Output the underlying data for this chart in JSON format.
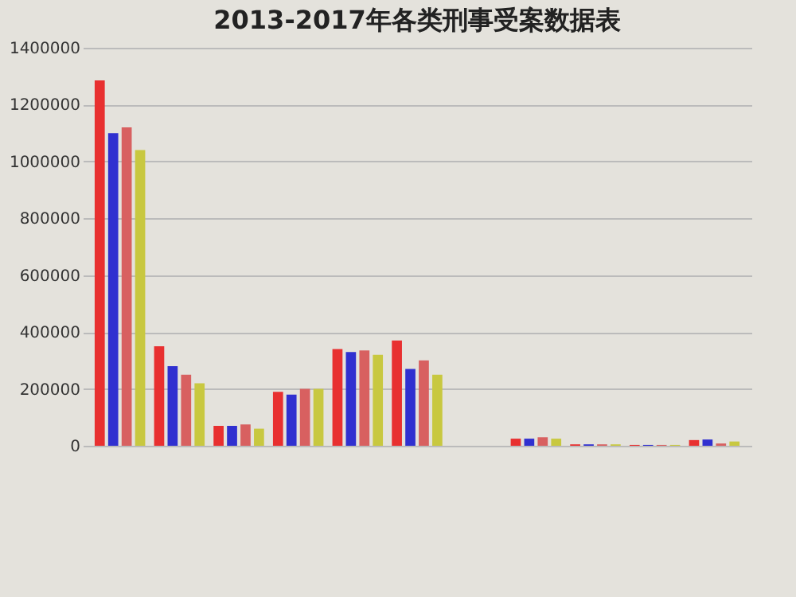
{
  "chart_data": {
    "type": "bar",
    "title": "2013-2017年各类刑事受案数据表",
    "categories": [
      null,
      null,
      null,
      null,
      null,
      null,
      null,
      null,
      null,
      null,
      null
    ],
    "series": [
      {
        "color": "#e83030",
        "values": [
          1285000,
          350000,
          70000,
          190000,
          340000,
          370000,
          0,
          25000,
          5000,
          3000,
          20000
        ]
      },
      {
        "color": "#3030d0",
        "values": [
          1100000,
          280000,
          70000,
          180000,
          330000,
          270000,
          0,
          25000,
          5000,
          3000,
          22000
        ]
      },
      {
        "color": "#d86060",
        "values": [
          1120000,
          250000,
          75000,
          200000,
          335000,
          300000,
          0,
          30000,
          5000,
          3000,
          8000
        ]
      },
      {
        "color": "#c8c840",
        "values": [
          1040000,
          220000,
          60000,
          200000,
          320000,
          250000,
          0,
          25000,
          5000,
          3000,
          15000
        ]
      }
    ],
    "ylim": [
      0,
      1400000
    ],
    "yticks": [
      0,
      200000,
      400000,
      600000,
      800000,
      1000000,
      1200000,
      1400000
    ],
    "grid": "y"
  }
}
